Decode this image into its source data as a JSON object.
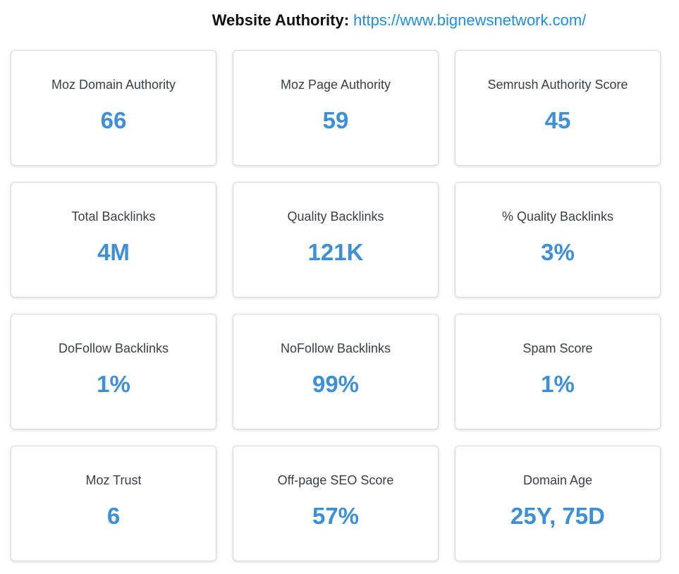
{
  "header": {
    "label": "Website Authority:",
    "url": "https://www.bignewsnetwork.com/"
  },
  "colors": {
    "accent": "#3d8fd6",
    "link": "#1f8ee0",
    "title_text": "#3a3f44"
  },
  "metrics": [
    {
      "title": "Moz Domain Authority",
      "value": "66"
    },
    {
      "title": "Moz Page Authority",
      "value": "59"
    },
    {
      "title": "Semrush Authority Score",
      "value": "45"
    },
    {
      "title": "Total Backlinks",
      "value": "4M"
    },
    {
      "title": "Quality Backlinks",
      "value": "121K"
    },
    {
      "title": "% Quality Backlinks",
      "value": "3%"
    },
    {
      "title": "DoFollow Backlinks",
      "value": "1%"
    },
    {
      "title": "NoFollow Backlinks",
      "value": "99%"
    },
    {
      "title": "Spam Score",
      "value": "1%"
    },
    {
      "title": "Moz Trust",
      "value": "6"
    },
    {
      "title": "Off-page SEO Score",
      "value": "57%"
    },
    {
      "title": "Domain Age",
      "value": "25Y, 75D"
    }
  ]
}
